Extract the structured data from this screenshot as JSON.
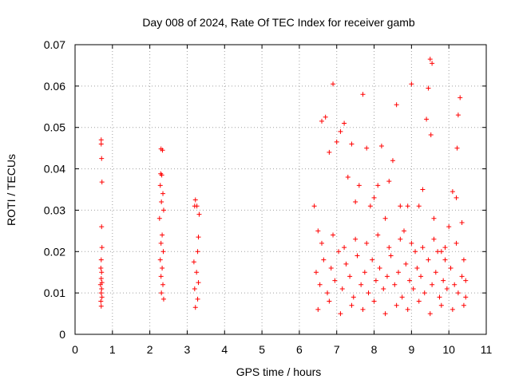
{
  "chart_data": {
    "type": "scatter",
    "title": "Day 008 of 2024, Rate Of TEC Index for receiver gamb",
    "xlabel": "GPS time / hours",
    "ylabel": "ROTI / TECUs",
    "xlim": [
      0,
      11
    ],
    "ylim": [
      0,
      0.07
    ],
    "xticks": [
      0,
      1,
      2,
      3,
      4,
      5,
      6,
      7,
      8,
      9,
      10,
      11
    ],
    "yticks": [
      0,
      0.01,
      0.02,
      0.03,
      0.04,
      0.05,
      0.06,
      0.07
    ],
    "xtick_labels": [
      "0",
      "1",
      "2",
      "3",
      "4",
      "5",
      "6",
      "7",
      "8",
      "9",
      "10",
      "11"
    ],
    "ytick_labels": [
      "0",
      "0.01",
      "0.02",
      "0.03",
      "0.04",
      "0.05",
      "0.06",
      "0.07"
    ],
    "grid": true,
    "marker": "+",
    "series": [
      {
        "name": "ROTI",
        "color": "#ff0000",
        "points": [
          [
            0.7,
            0.047
          ],
          [
            0.7,
            0.046
          ],
          [
            0.71,
            0.0425
          ],
          [
            0.72,
            0.0368
          ],
          [
            0.71,
            0.026
          ],
          [
            0.72,
            0.021
          ],
          [
            0.7,
            0.018
          ],
          [
            0.69,
            0.016
          ],
          [
            0.71,
            0.015
          ],
          [
            0.7,
            0.0135
          ],
          [
            0.72,
            0.0125
          ],
          [
            0.68,
            0.012
          ],
          [
            0.71,
            0.011
          ],
          [
            0.7,
            0.01
          ],
          [
            0.72,
            0.009
          ],
          [
            0.69,
            0.008
          ],
          [
            0.7,
            0.0068
          ],
          [
            2.3,
            0.0448
          ],
          [
            2.34,
            0.0445
          ],
          [
            2.29,
            0.0388
          ],
          [
            2.32,
            0.0385
          ],
          [
            2.28,
            0.036
          ],
          [
            2.35,
            0.034
          ],
          [
            2.31,
            0.032
          ],
          [
            2.37,
            0.03
          ],
          [
            2.26,
            0.028
          ],
          [
            2.33,
            0.024
          ],
          [
            2.3,
            0.022
          ],
          [
            2.36,
            0.02
          ],
          [
            2.28,
            0.018
          ],
          [
            2.33,
            0.016
          ],
          [
            2.3,
            0.014
          ],
          [
            2.35,
            0.012
          ],
          [
            2.31,
            0.01
          ],
          [
            2.37,
            0.0085
          ],
          [
            3.22,
            0.0325
          ],
          [
            3.2,
            0.031
          ],
          [
            3.26,
            0.031
          ],
          [
            3.32,
            0.029
          ],
          [
            3.3,
            0.0235
          ],
          [
            3.28,
            0.02
          ],
          [
            3.18,
            0.0175
          ],
          [
            3.25,
            0.015
          ],
          [
            3.3,
            0.0125
          ],
          [
            3.2,
            0.011
          ],
          [
            3.28,
            0.0085
          ],
          [
            3.22,
            0.0065
          ],
          [
            6.4,
            0.031
          ],
          [
            6.5,
            0.025
          ],
          [
            6.6,
            0.0515
          ],
          [
            6.7,
            0.0525
          ],
          [
            6.8,
            0.044
          ],
          [
            6.9,
            0.0605
          ],
          [
            7.0,
            0.0465
          ],
          [
            7.1,
            0.049
          ],
          [
            7.2,
            0.051
          ],
          [
            7.3,
            0.038
          ],
          [
            7.4,
            0.046
          ],
          [
            7.5,
            0.032
          ],
          [
            7.6,
            0.036
          ],
          [
            7.7,
            0.058
          ],
          [
            7.8,
            0.045
          ],
          [
            7.9,
            0.031
          ],
          [
            8.0,
            0.033
          ],
          [
            8.1,
            0.036
          ],
          [
            8.2,
            0.0455
          ],
          [
            8.3,
            0.028
          ],
          [
            8.4,
            0.037
          ],
          [
            8.5,
            0.042
          ],
          [
            8.6,
            0.0555
          ],
          [
            8.7,
            0.031
          ],
          [
            8.8,
            0.025
          ],
          [
            8.9,
            0.031
          ],
          [
            9.0,
            0.0605
          ],
          [
            9.1,
            0.02
          ],
          [
            9.2,
            0.031
          ],
          [
            9.3,
            0.035
          ],
          [
            9.4,
            0.052
          ],
          [
            9.5,
            0.0665
          ],
          [
            9.55,
            0.0655
          ],
          [
            9.45,
            0.0595
          ],
          [
            9.52,
            0.0482
          ],
          [
            9.6,
            0.028
          ],
          [
            9.7,
            0.02
          ],
          [
            9.8,
            0.02
          ],
          [
            9.9,
            0.018
          ],
          [
            10.0,
            0.026
          ],
          [
            10.1,
            0.0345
          ],
          [
            10.2,
            0.033
          ],
          [
            10.25,
            0.053
          ],
          [
            10.3,
            0.0572
          ],
          [
            10.22,
            0.045
          ],
          [
            10.35,
            0.027
          ],
          [
            10.4,
            0.018
          ],
          [
            10.45,
            0.013
          ],
          [
            6.45,
            0.015
          ],
          [
            6.55,
            0.012
          ],
          [
            6.65,
            0.018
          ],
          [
            6.75,
            0.01
          ],
          [
            6.85,
            0.016
          ],
          [
            6.95,
            0.013
          ],
          [
            7.05,
            0.02
          ],
          [
            7.15,
            0.011
          ],
          [
            7.25,
            0.017
          ],
          [
            7.35,
            0.014
          ],
          [
            7.45,
            0.009
          ],
          [
            7.55,
            0.019
          ],
          [
            7.65,
            0.012
          ],
          [
            7.75,
            0.015
          ],
          [
            7.85,
            0.01
          ],
          [
            7.95,
            0.018
          ],
          [
            8.05,
            0.013
          ],
          [
            8.15,
            0.016
          ],
          [
            8.25,
            0.011
          ],
          [
            8.35,
            0.014
          ],
          [
            8.45,
            0.019
          ],
          [
            8.55,
            0.012
          ],
          [
            8.65,
            0.015
          ],
          [
            8.75,
            0.009
          ],
          [
            8.85,
            0.017
          ],
          [
            8.95,
            0.013
          ],
          [
            9.05,
            0.011
          ],
          [
            9.15,
            0.016
          ],
          [
            9.25,
            0.014
          ],
          [
            9.35,
            0.01
          ],
          [
            9.45,
            0.018
          ],
          [
            9.55,
            0.012
          ],
          [
            9.65,
            0.015
          ],
          [
            9.75,
            0.009
          ],
          [
            9.85,
            0.013
          ],
          [
            9.95,
            0.011
          ],
          [
            10.05,
            0.016
          ],
          [
            10.15,
            0.012
          ],
          [
            10.25,
            0.01
          ],
          [
            10.35,
            0.014
          ],
          [
            10.45,
            0.009
          ],
          [
            6.5,
            0.006
          ],
          [
            6.8,
            0.008
          ],
          [
            7.1,
            0.005
          ],
          [
            7.4,
            0.007
          ],
          [
            7.7,
            0.006
          ],
          [
            8.0,
            0.008
          ],
          [
            8.3,
            0.005
          ],
          [
            8.6,
            0.007
          ],
          [
            8.9,
            0.006
          ],
          [
            9.2,
            0.008
          ],
          [
            9.5,
            0.005
          ],
          [
            9.8,
            0.007
          ],
          [
            10.1,
            0.006
          ],
          [
            10.4,
            0.007
          ],
          [
            6.6,
            0.022
          ],
          [
            6.9,
            0.024
          ],
          [
            7.2,
            0.021
          ],
          [
            7.5,
            0.023
          ],
          [
            7.8,
            0.022
          ],
          [
            8.1,
            0.024
          ],
          [
            8.4,
            0.021
          ],
          [
            8.7,
            0.023
          ],
          [
            9.0,
            0.022
          ],
          [
            9.3,
            0.021
          ],
          [
            9.6,
            0.023
          ],
          [
            9.9,
            0.021
          ],
          [
            10.2,
            0.022
          ]
        ]
      }
    ]
  }
}
